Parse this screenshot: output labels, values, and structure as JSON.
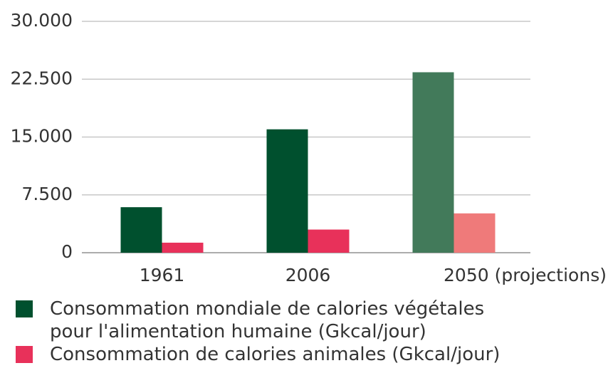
{
  "chart_data": {
    "type": "bar",
    "categories": [
      "1961",
      "2006",
      "2050 (projections)"
    ],
    "series": [
      {
        "name": "Consommation mondiale de calories végétales pour l'alimentation humaine (Gkcal/jour)",
        "color": "#00502e",
        "colors": [
          "#00502e",
          "#00502e",
          "#427a5a"
        ],
        "values": [
          5900,
          16000,
          23400
        ]
      },
      {
        "name": "Consommation de calories animales (Gkcal/jour)",
        "color": "#e8315a",
        "colors": [
          "#e8315a",
          "#e8315a",
          "#ef7a7a"
        ],
        "values": [
          1300,
          3000,
          5100
        ]
      }
    ],
    "ylim": [
      0,
      30000
    ],
    "yticks": [
      0,
      {
        "value": 7500,
        "label": "7.500"
      },
      {
        "value": 15000,
        "label": "15.000"
      },
      {
        "value": 22500,
        "label": "22.500"
      },
      {
        "value": 30000,
        "label": "30.000"
      }
    ],
    "grid": true
  }
}
